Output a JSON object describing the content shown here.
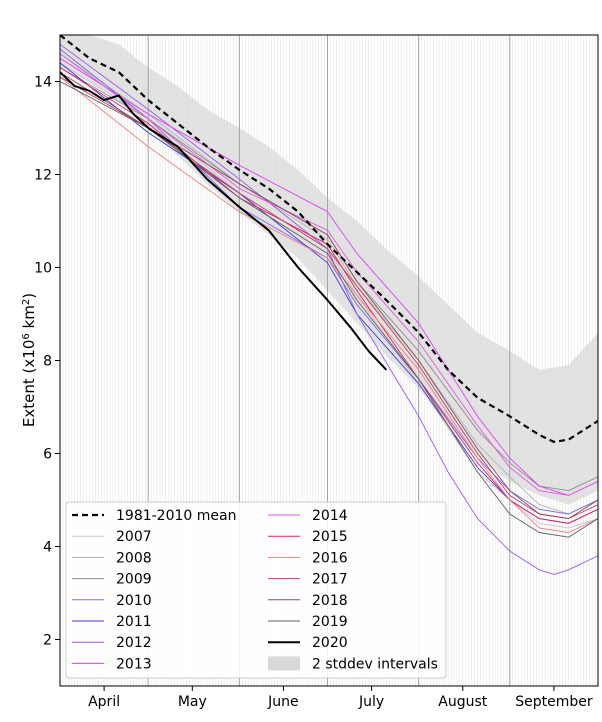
{
  "chart_data": {
    "type": "line",
    "title": "",
    "ylabel_prefix": "Extent (x10",
    "ylabel_sup1": "6",
    "ylabel_mid": " km",
    "ylabel_sup2": "2",
    "ylabel_suffix": ")",
    "xlabel": "",
    "x_unit": "day of year",
    "xlim": [
      91,
      274
    ],
    "ylim": [
      1.0,
      15.0
    ],
    "yticks": [
      2,
      4,
      6,
      8,
      10,
      12,
      14
    ],
    "month_labels": [
      {
        "label": "April",
        "day": 106
      },
      {
        "label": "May",
        "day": 136
      },
      {
        "label": "June",
        "day": 167
      },
      {
        "label": "July",
        "day": 197
      },
      {
        "label": "August",
        "day": 228
      },
      {
        "label": "September",
        "day": 259
      }
    ],
    "month_boundaries": [
      121,
      152,
      182,
      213,
      244
    ],
    "mean": {
      "name": "1981-2010 mean",
      "color": "#000000",
      "x": [
        91,
        101,
        111,
        121,
        131,
        141,
        152,
        162,
        172,
        182,
        192,
        202,
        213,
        223,
        233,
        244,
        254,
        259,
        264,
        274
      ],
      "y": [
        15.0,
        14.5,
        14.2,
        13.6,
        13.1,
        12.6,
        12.1,
        11.7,
        11.2,
        10.5,
        9.9,
        9.3,
        8.6,
        7.8,
        7.2,
        6.8,
        6.4,
        6.25,
        6.3,
        6.7
      ]
    },
    "band": {
      "name": "2 stddev intervals",
      "color": "#d9d9d9",
      "x": [
        91,
        101,
        111,
        121,
        131,
        141,
        152,
        162,
        172,
        182,
        192,
        202,
        213,
        223,
        233,
        244,
        254,
        264,
        274
      ],
      "upper": [
        15.0,
        15.0,
        14.8,
        14.3,
        13.9,
        13.4,
        13.0,
        12.6,
        12.1,
        11.5,
        11.0,
        10.4,
        9.8,
        9.2,
        8.6,
        8.2,
        7.8,
        7.9,
        8.6
      ],
      "lower": [
        14.3,
        14.0,
        13.6,
        13.0,
        12.4,
        11.8,
        11.2,
        10.7,
        10.2,
        9.5,
        8.8,
        8.1,
        7.4,
        6.6,
        5.9,
        5.4,
        5.1,
        4.9,
        5.2
      ]
    },
    "series": [
      {
        "name": "2007",
        "color": "#c7c7c7",
        "x": [
          91,
          121,
          152,
          182,
          192,
          213,
          233,
          244,
          254,
          264,
          274
        ],
        "y": [
          14.4,
          13.2,
          11.6,
          10.4,
          9.4,
          7.5,
          5.6,
          5.0,
          4.5,
          4.4,
          4.6
        ]
      },
      {
        "name": "2008",
        "color": "#b3b3b3",
        "x": [
          91,
          121,
          152,
          182,
          192,
          213,
          233,
          244,
          254,
          264,
          274
        ],
        "y": [
          14.6,
          13.3,
          11.8,
          10.6,
          9.6,
          8.0,
          6.2,
          5.5,
          4.9,
          4.7,
          5.0
        ]
      },
      {
        "name": "2009",
        "color": "#8c8c8c",
        "x": [
          91,
          121,
          152,
          182,
          192,
          213,
          233,
          244,
          254,
          264,
          274
        ],
        "y": [
          14.3,
          13.2,
          11.8,
          10.7,
          9.7,
          8.2,
          6.5,
          5.8,
          5.3,
          5.2,
          5.5
        ]
      },
      {
        "name": "2010",
        "color": "#7b68ee",
        "x": [
          91,
          121,
          152,
          182,
          192,
          213,
          233,
          244,
          254,
          264,
          274
        ],
        "y": [
          14.7,
          13.2,
          11.3,
          10.2,
          9.2,
          7.6,
          5.9,
          5.2,
          4.8,
          4.7,
          5.0
        ]
      },
      {
        "name": "2011",
        "color": "#3a3ad9",
        "x": [
          91,
          121,
          152,
          182,
          192,
          213,
          233,
          244,
          254,
          264,
          274
        ],
        "y": [
          14.4,
          12.9,
          11.6,
          10.1,
          9.0,
          7.5,
          5.7,
          5.0,
          4.6,
          4.5,
          4.8
        ]
      },
      {
        "name": "2012",
        "color": "#9b59e8",
        "x": [
          91,
          121,
          152,
          182,
          192,
          213,
          223,
          233,
          244,
          254,
          259,
          264,
          274
        ],
        "y": [
          14.8,
          13.4,
          11.9,
          10.4,
          9.0,
          6.8,
          5.6,
          4.6,
          3.9,
          3.5,
          3.4,
          3.5,
          3.8
        ]
      },
      {
        "name": "2013",
        "color": "#e040fb",
        "x": [
          91,
          121,
          152,
          182,
          192,
          213,
          233,
          244,
          254,
          264,
          274
        ],
        "y": [
          14.5,
          13.3,
          12.2,
          11.2,
          10.3,
          8.8,
          6.8,
          5.9,
          5.3,
          5.1,
          5.4
        ]
      },
      {
        "name": "2014",
        "color": "#e05ae0",
        "x": [
          91,
          121,
          152,
          182,
          192,
          213,
          233,
          244,
          254,
          264,
          274
        ],
        "y": [
          14.6,
          13.2,
          11.7,
          10.8,
          9.9,
          8.4,
          6.6,
          5.7,
          5.2,
          5.1,
          5.4
        ]
      },
      {
        "name": "2015",
        "color": "#e0205a",
        "x": [
          91,
          121,
          152,
          182,
          192,
          213,
          233,
          244,
          254,
          264,
          274
        ],
        "y": [
          14.3,
          13.1,
          11.5,
          10.5,
          9.5,
          7.6,
          5.8,
          5.0,
          4.6,
          4.5,
          4.8
        ]
      },
      {
        "name": "2016",
        "color": "#f08080",
        "x": [
          91,
          121,
          152,
          182,
          192,
          213,
          233,
          244,
          254,
          264,
          274
        ],
        "y": [
          14.1,
          12.6,
          11.2,
          10.2,
          9.4,
          7.8,
          5.9,
          5.0,
          4.4,
          4.3,
          4.6
        ]
      },
      {
        "name": "2017",
        "color": "#c04060",
        "x": [
          91,
          121,
          152,
          182,
          192,
          213,
          233,
          244,
          254,
          264,
          274
        ],
        "y": [
          14.1,
          13.0,
          11.6,
          10.4,
          9.6,
          7.9,
          6.0,
          5.1,
          4.7,
          4.6,
          4.9
        ]
      },
      {
        "name": "2018",
        "color": "#8b4a5a",
        "x": [
          91,
          121,
          152,
          182,
          192,
          213,
          233,
          244,
          254,
          264,
          274
        ],
        "y": [
          14.2,
          13.0,
          11.8,
          10.7,
          9.7,
          8.0,
          6.1,
          5.2,
          4.7,
          4.6,
          5.0
        ]
      },
      {
        "name": "2019",
        "color": "#606060",
        "x": [
          91,
          121,
          152,
          182,
          192,
          213,
          233,
          244,
          254,
          264,
          274
        ],
        "y": [
          14.0,
          13.0,
          11.5,
          10.3,
          9.3,
          7.6,
          5.6,
          4.7,
          4.3,
          4.2,
          4.6
        ]
      },
      {
        "name": "2020",
        "color": "#000000",
        "x": [
          91,
          96,
          101,
          106,
          111,
          116,
          121,
          131,
          141,
          152,
          162,
          172,
          182,
          190,
          196,
          202
        ],
        "y": [
          14.2,
          13.9,
          13.8,
          13.6,
          13.7,
          13.3,
          13.0,
          12.6,
          11.9,
          11.3,
          10.8,
          10.0,
          9.3,
          8.7,
          8.2,
          7.8
        ]
      }
    ],
    "legend_position": "bottom-left",
    "legend_band_label": "2 stddev intervals",
    "grid": false
  }
}
